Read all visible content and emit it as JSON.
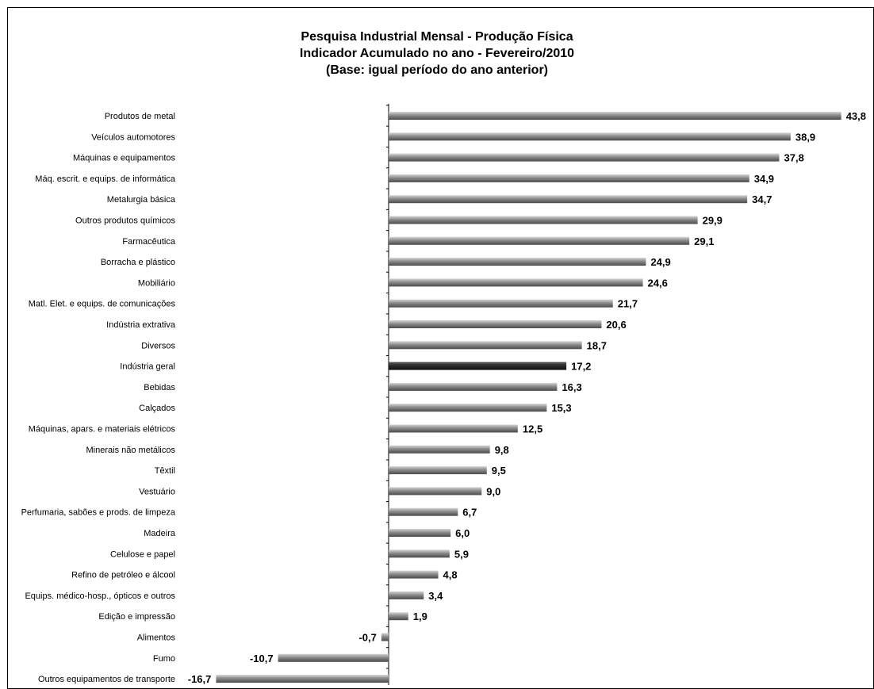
{
  "chart_data": {
    "type": "bar",
    "orientation": "horizontal",
    "title_lines": [
      "Pesquisa Industrial Mensal - Produção Física",
      "Indicador Acumulado no ano - Fevereiro/2010",
      "(Base: igual período do ano anterior)"
    ],
    "categories": [
      "Produtos de metal",
      "Veículos automotores",
      "Máquinas e equipamentos",
      "Máq. escrit. e equips. de informática",
      "Metalurgia básica",
      "Outros produtos químicos",
      "Farmacêutica",
      "Borracha e plástico",
      "Mobiliário",
      "Matl. Elet. e equips. de comunicações",
      "Indústria extrativa",
      "Diversos",
      "Indústria geral",
      "Bebidas",
      "Calçados",
      "Máquinas, apars. e materiais elétricos",
      "Minerais não metálicos",
      "Têxtil",
      "Vestuário",
      "Perfumaria, sabões e prods. de limpeza",
      "Madeira",
      "Celulose e papel",
      "Refino de petróleo e álcool",
      "Equips. médico-hosp., ópticos e outros",
      "Edição e impressão",
      "Alimentos",
      "Fumo",
      "Outros equipamentos de transporte"
    ],
    "values": [
      43.8,
      38.9,
      37.8,
      34.9,
      34.7,
      29.9,
      29.1,
      24.9,
      24.6,
      21.7,
      20.6,
      18.7,
      17.2,
      16.3,
      15.3,
      12.5,
      9.8,
      9.5,
      9.0,
      6.7,
      6.0,
      5.9,
      4.8,
      3.4,
      1.9,
      -0.7,
      -10.7,
      -16.7
    ],
    "value_labels": [
      "43,8",
      "38,9",
      "37,8",
      "34,9",
      "34,7",
      "29,9",
      "29,1",
      "24,9",
      "24,6",
      "21,7",
      "20,6",
      "18,7",
      "17,2",
      "16,3",
      "15,3",
      "12,5",
      "9,8",
      "9,5",
      "9,0",
      "6,7",
      "6,0",
      "5,9",
      "4,8",
      "3,4",
      "1,9",
      "-0,7",
      "-10,7",
      "-16,7"
    ],
    "highlight_category": "Indústria geral",
    "colors": {
      "bar": "#8a8a8a",
      "bar_light": "#d6d6d6",
      "bar_dark": "#4a4a4a",
      "highlight": "#2b2b2b",
      "highlight_light": "#5a5a5a",
      "axis": "#000000"
    },
    "grid": false,
    "legend": "none"
  }
}
